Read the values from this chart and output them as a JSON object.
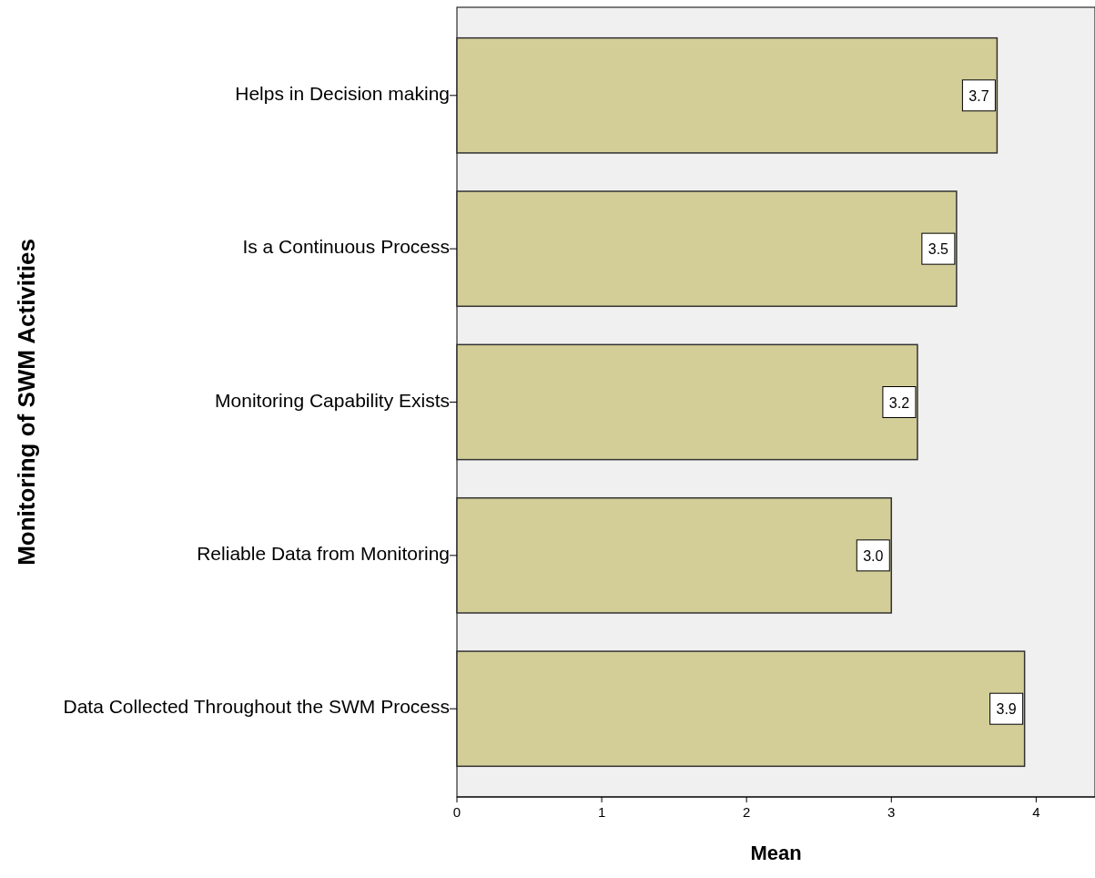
{
  "chart_data": {
    "type": "bar",
    "orientation": "horizontal",
    "xlabel": "Mean",
    "ylabel": "Monitoring of SWM Activities",
    "categories": [
      "Helps in Decision making",
      "Is a Continuous Process",
      "Monitoring Capability Exists",
      "Reliable Data from Monitoring",
      "Data Collected Throughout the SWM Process"
    ],
    "values": [
      3.73,
      3.45,
      3.18,
      3.0,
      3.92
    ],
    "value_labels": [
      "3.7",
      "3.5",
      "3.2",
      "3.0",
      "3.9"
    ],
    "color": "#d3ce98",
    "xlim": [
      0,
      4.4
    ],
    "xticks": [
      0,
      1,
      2,
      3,
      4
    ],
    "grid": false
  }
}
